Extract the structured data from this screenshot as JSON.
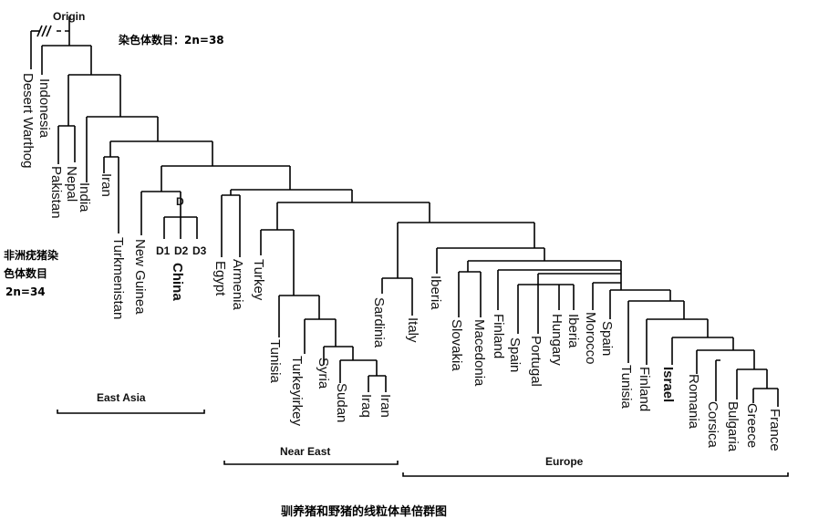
{
  "origin_label": "Origin",
  "chromosome_note": "染色体数目：2n=38",
  "warthog_note": [
    "非洲疣猪染",
    "色体数目",
    "2n=34"
  ],
  "caption": "驯养猪和野猪的线粒体单倍群图",
  "regions": {
    "east_asia": "East Asia",
    "near_east": "Near East",
    "europe": "Europe"
  },
  "haplo_group": {
    "node": "D",
    "subs": [
      "D1",
      "D2",
      "D3"
    ],
    "china": "China"
  },
  "taxa": [
    {
      "id": "desert-warthog",
      "label": "Desert Warthog"
    },
    {
      "id": "indonesia",
      "label": "Indonesia"
    },
    {
      "id": "pakistan",
      "label": "Pakistan"
    },
    {
      "id": "nepal",
      "label": "Nepal"
    },
    {
      "id": "india",
      "label": "India"
    },
    {
      "id": "iran-asia",
      "label": "Iran"
    },
    {
      "id": "turkmenistan",
      "label": "Turkmenistan"
    },
    {
      "id": "new-guinea",
      "label": "New Guinea"
    },
    {
      "id": "egypt",
      "label": "Egypt"
    },
    {
      "id": "armenia",
      "label": "Armenia"
    },
    {
      "id": "turkey",
      "label": "Turkey"
    },
    {
      "id": "tunisia-ne",
      "label": "Tunisia"
    },
    {
      "id": "turkeyirkey",
      "label": "Turkeyirkey"
    },
    {
      "id": "syria",
      "label": "Syria"
    },
    {
      "id": "sudan",
      "label": "Sudan"
    },
    {
      "id": "iraq",
      "label": "Iraq"
    },
    {
      "id": "iran-ne",
      "label": "Iran"
    },
    {
      "id": "sardinia",
      "label": "Sardinia"
    },
    {
      "id": "italy",
      "label": "Italy"
    },
    {
      "id": "iberia-1",
      "label": "Iberia"
    },
    {
      "id": "slovakia",
      "label": "Slovakia"
    },
    {
      "id": "macedonia",
      "label": "Macedonia"
    },
    {
      "id": "finland-1",
      "label": "Finland"
    },
    {
      "id": "spain-1",
      "label": "Spain"
    },
    {
      "id": "portugal",
      "label": "Portugal"
    },
    {
      "id": "hungary",
      "label": "Hungary"
    },
    {
      "id": "iberia-2",
      "label": "Iberia"
    },
    {
      "id": "morocco",
      "label": "Morocco"
    },
    {
      "id": "spain-2",
      "label": "Spain"
    },
    {
      "id": "tunisia-eu",
      "label": "Tunisia"
    },
    {
      "id": "finland-2",
      "label": "Finland"
    },
    {
      "id": "israel",
      "label": "Israel"
    },
    {
      "id": "romania",
      "label": "Romania"
    },
    {
      "id": "corsica",
      "label": "Corsica"
    },
    {
      "id": "bulgaria",
      "label": "Bulgaria"
    },
    {
      "id": "greece",
      "label": "Greece"
    },
    {
      "id": "france",
      "label": "France"
    }
  ]
}
